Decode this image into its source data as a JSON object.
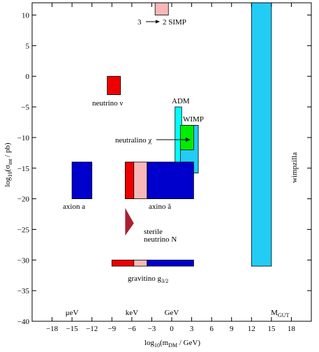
{
  "chart_data": {
    "type": "region",
    "xlabel": "log10(mDM / GeV)",
    "ylabel": "log10(σint / pb)",
    "xlim": [
      -21,
      21
    ],
    "ylim": [
      -40,
      12
    ],
    "x_ticks": [
      -18,
      -15,
      -12,
      -9,
      -6,
      -3,
      0,
      3,
      6,
      9,
      12,
      15,
      18
    ],
    "y_ticks": [
      10,
      5,
      0,
      -5,
      -10,
      -15,
      -20,
      -25,
      -30,
      -35,
      -40
    ],
    "scale_markers": [
      {
        "label": "μeV",
        "x": -15
      },
      {
        "label": "keV",
        "x": -6
      },
      {
        "label": "GeV",
        "x": 0
      },
      {
        "label": "MGUT",
        "x": 16.3
      }
    ],
    "regions": [
      {
        "name": "3 → 2 SIMP",
        "x": [
          -2.5,
          -0.5
        ],
        "y": [
          10.0,
          12.0
        ],
        "color": "#f9b8b8"
      },
      {
        "name": "neutrino ν",
        "x": [
          -9.7,
          -7.7
        ],
        "y": [
          -3.0,
          0.0
        ],
        "color": "#ee0000"
      },
      {
        "name": "ADM",
        "x": [
          0.5,
          1.5
        ],
        "y": [
          -14.8,
          -5.0
        ],
        "color": "#00ffff"
      },
      {
        "name": "WIMP",
        "x": [
          1.3,
          4.0
        ],
        "y": [
          -15.8,
          -8.0
        ],
        "color": "#22ccf5"
      },
      {
        "name": "neutralino χ",
        "x": [
          1.3,
          3.3
        ],
        "y": [
          -12.0,
          -8.0
        ],
        "color": "#00ee00"
      },
      {
        "name": "axion a",
        "x": [
          -15.0,
          -12.0
        ],
        "y": [
          -20.0,
          -14.0
        ],
        "color": "#0000cc"
      },
      {
        "name": "axino ã (warm)",
        "x": [
          -7.0,
          -5.7
        ],
        "y": [
          -20.0,
          -14.0
        ],
        "color": "#ee0000"
      },
      {
        "name": "axino ã (mixed)",
        "x": [
          -5.7,
          -3.7
        ],
        "y": [
          -20.0,
          -14.0
        ],
        "color": "#f9b8b8"
      },
      {
        "name": "axino ã (cold)",
        "x": [
          -3.7,
          3.3
        ],
        "y": [
          -20.0,
          -14.0
        ],
        "color": "#0000cc"
      },
      {
        "name": "gravitino g3/2 (warm)",
        "x": [
          -9.0,
          -5.7
        ],
        "y": [
          -31.0,
          -30.0
        ],
        "color": "#ee0000"
      },
      {
        "name": "gravitino g3/2 (mixed)",
        "x": [
          -5.7,
          -3.7
        ],
        "y": [
          -31.0,
          -30.0
        ],
        "color": "#f9b8b8"
      },
      {
        "name": "gravitino g3/2 (cold)",
        "x": [
          -3.7,
          3.3
        ],
        "y": [
          -31.0,
          -30.0
        ],
        "color": "#0000cc"
      },
      {
        "name": "wimpzilla",
        "x": [
          12.0,
          15.0
        ],
        "y": [
          -31.0,
          12.0
        ],
        "color": "#22ccf5"
      }
    ],
    "triangles": [
      {
        "name": "sterile neutrino N",
        "points": [
          [
            -7.0,
            -21.5
          ],
          [
            -7.0,
            -26.0
          ],
          [
            -5.7,
            -24.0
          ]
        ],
        "color": "#aa2030"
      }
    ],
    "labels": {
      "simp_a": "3",
      "simp_b": "2 SIMP",
      "neutrino": "neutrino ν",
      "adm": "ADM",
      "wimp": "WIMP",
      "neutralino": "neutralino χ",
      "axion": "axion a",
      "axino": "axino ã",
      "sterile_1": "sterile",
      "sterile_2": "neutrino N",
      "gravitino_main": "gravitino g",
      "gravitino_sub": "3/2",
      "wimpzilla": "wimpzilla"
    },
    "ylabel_parts": {
      "pre": "log",
      "sub1": "10",
      "mid": "(σ",
      "sub2": "int",
      "post": " / pb)"
    },
    "xlabel_parts": {
      "pre": "log",
      "sub1": "10",
      "mid": "(m",
      "sub2": "DM",
      "post": " / GeV)"
    },
    "mgut_parts": {
      "main": "M",
      "sub": "GUT"
    }
  }
}
